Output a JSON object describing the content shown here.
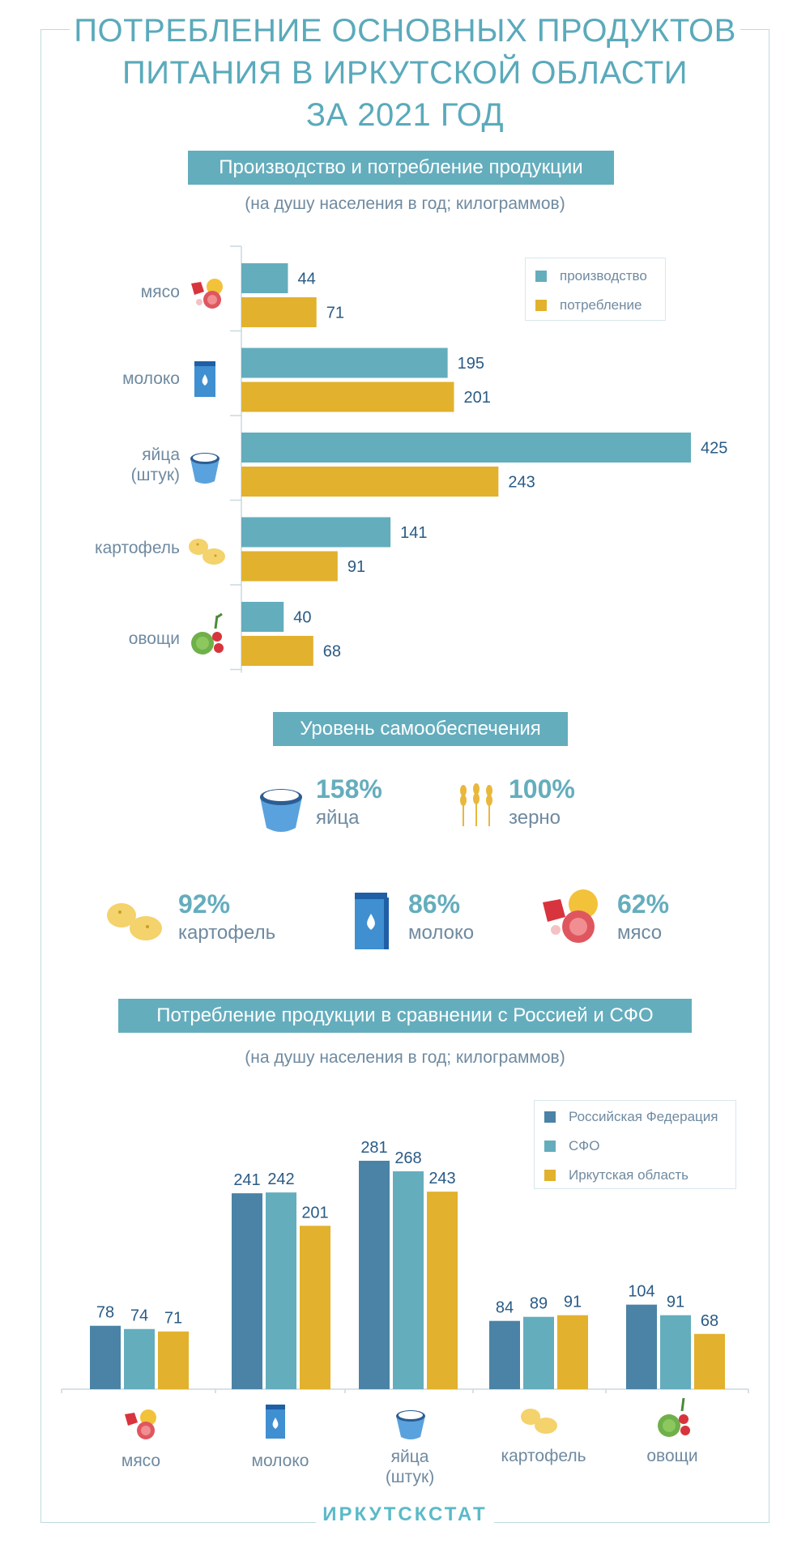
{
  "title": {
    "line1": "ПОТРЕБЛЕНИЕ ОСНОВНЫХ ПРОДУКТОВ",
    "line2": "ПИТАНИЯ В ИРКУТСКОЙ ОБЛАСТИ",
    "line3": "ЗА 2021 ГОД"
  },
  "section1": {
    "tag": "Производство и потребление продукции",
    "subtitle": "(на душу населения в год; килограммов)",
    "legend": {
      "production": "производство",
      "consumption": "потребление"
    },
    "labels": {
      "meat": "мясо",
      "milk": "молоко",
      "eggs_1": "яйца",
      "eggs_2": "(штук)",
      "potato": "картофель",
      "veg": "овощи"
    }
  },
  "section2": {
    "tag": "Уровень самообеспечения",
    "items": [
      {
        "pct": "158%",
        "name": "яйца"
      },
      {
        "pct": "100%",
        "name": "зерно"
      },
      {
        "pct": "92%",
        "name": "картофель"
      },
      {
        "pct": "86%",
        "name": "молоко"
      },
      {
        "pct": "62%",
        "name": "мясо"
      }
    ]
  },
  "section3": {
    "tag": "Потребление продукции в сравнении с Россией и СФО",
    "subtitle": "(на душу населения в год; килограммов)",
    "legend": {
      "rf": "Российская Федерация",
      "sfo": "СФО",
      "irk": "Иркутская область"
    },
    "labels": {
      "meat": "мясо",
      "milk": "молоко",
      "eggs_1": "яйца",
      "eggs_2": "(штук)",
      "potato": "картофель",
      "veg": "овощи"
    }
  },
  "footer": "ИРКУТСКСТАТ",
  "colors": {
    "teal": "#64adbd",
    "gold": "#e2b12d",
    "navy": "#4a83a5",
    "value_text": "#2a5b86"
  },
  "chart_data": [
    {
      "type": "bar",
      "orientation": "horizontal",
      "title": "Производство и потребление продукции",
      "subtitle": "(на душу населения в год; килограммов)",
      "categories": [
        "мясо",
        "молоко",
        "яйца (штук)",
        "картофель",
        "овощи"
      ],
      "series": [
        {
          "name": "производство",
          "values": [
            44,
            195,
            425,
            141,
            40
          ]
        },
        {
          "name": "потребление",
          "values": [
            71,
            201,
            243,
            91,
            68
          ]
        }
      ],
      "xlim": [
        0,
        425
      ],
      "legend": "top-right",
      "grid": false
    },
    {
      "type": "bar",
      "orientation": "vertical",
      "title": "Потребление продукции в сравнении с Россией и СФО",
      "subtitle": "(на душу населения в год; килограммов)",
      "categories": [
        "мясо",
        "молоко",
        "яйца (штук)",
        "картофель",
        "овощи"
      ],
      "series": [
        {
          "name": "Российская Федерация",
          "values": [
            78,
            241,
            281,
            84,
            104
          ]
        },
        {
          "name": "СФО",
          "values": [
            74,
            242,
            268,
            89,
            91
          ]
        },
        {
          "name": "Иркутская область",
          "values": [
            71,
            201,
            243,
            91,
            68
          ]
        }
      ],
      "ylim": [
        0,
        281
      ],
      "legend": "top-right",
      "grid": false
    }
  ]
}
